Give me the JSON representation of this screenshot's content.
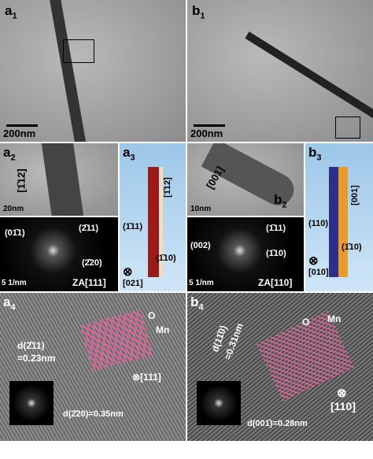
{
  "panels": {
    "a1": {
      "letter": "a",
      "index": "1",
      "scale": "200nm"
    },
    "b1": {
      "letter": "b",
      "index": "1",
      "scale": "200nm"
    },
    "a2": {
      "letter": "a",
      "index": "2",
      "direction": "[1̄12]",
      "scale": "20nm",
      "spots": [
        "(01̄1)",
        "(2̄11)",
        "(2̄20)"
      ],
      "zone": "ZA[111]",
      "dscale": "5 1/nm"
    },
    "a3": {
      "letter": "a",
      "index": "3",
      "direction": "[1̄12]",
      "faces": [
        "(1̄11)",
        "(1̄10)"
      ],
      "normal": "[021]"
    },
    "b2": {
      "letter": "b",
      "index": "2",
      "direction": "[001]",
      "scale": "10nm",
      "spots": [
        "(002)",
        "(1̄11)",
        "(1̄10)"
      ],
      "zone": "ZA[110]",
      "dscale": "5 1/nm"
    },
    "b3": {
      "letter": "b",
      "index": "3",
      "direction": "[001]",
      "faces": [
        "(110)",
        "(1̄10)"
      ],
      "normal": "[010]"
    },
    "a4": {
      "letter": "a",
      "index": "4",
      "spacing1": "d(2̄11)",
      "value1": "=0.23nm",
      "o": "O",
      "mn": "Mn",
      "normal": "[111]",
      "spacing2": "d(2̄20)=0.35nm"
    },
    "b4": {
      "letter": "b",
      "index": "4",
      "spacing1": "d(11̄0)",
      "value1": "=0.31nm",
      "o": "O",
      "mn": "Mn",
      "normal": "[110]",
      "spacing2": "d(001̄)=0.28nm"
    }
  }
}
